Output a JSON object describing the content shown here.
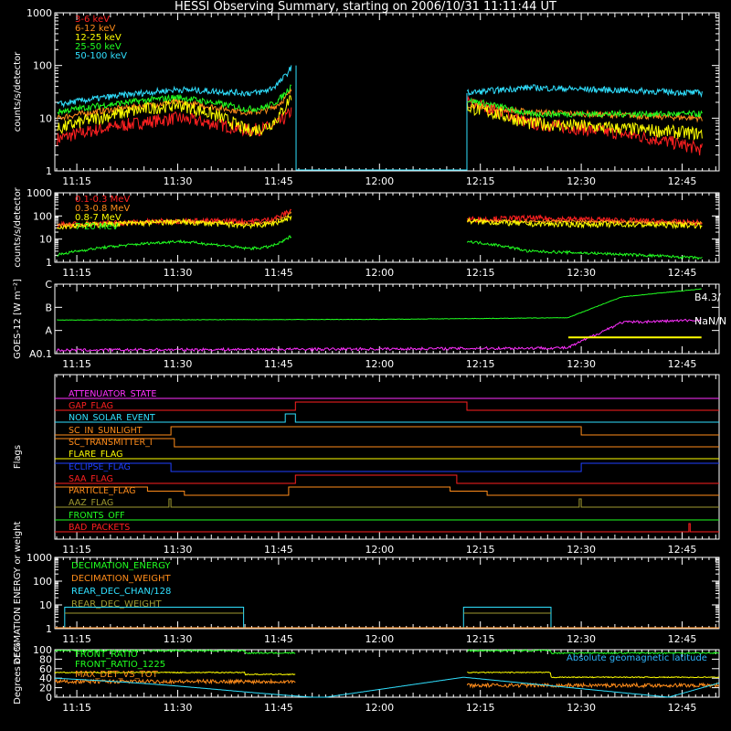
{
  "title": "HESSI Observing Summary, starting on 2006/10/31 11:11:44 UT",
  "time_ticks": [
    "11:15",
    "11:30",
    "11:45",
    "12:00",
    "12:15",
    "12:30",
    "12:45"
  ],
  "colors": {
    "red": "#ff2020",
    "orange": "#ff8c1a",
    "yellow": "#ffff00",
    "green": "#20ff20",
    "cyan": "#30e0ff",
    "magenta": "#ff30ff",
    "blue": "#2040ff",
    "olive": "#a09a30",
    "axis": "#ffffff"
  },
  "chart_data": [
    {
      "id": "lowE",
      "type": "line",
      "ylabel": "counts/s/detector",
      "ylog": true,
      "ylim": [
        1,
        1000
      ],
      "yticks": [
        "1",
        "10",
        "100",
        "1000"
      ],
      "x": [
        "11:12",
        "11:30",
        "11:40",
        "11:47",
        "11:48",
        "12:13",
        "12:22",
        "12:48"
      ],
      "series": [
        {
          "name": "3-6 keV",
          "color": "#ff2020",
          "values": [
            4,
            10,
            6,
            14,
            null,
            20,
            8,
            2.5
          ]
        },
        {
          "name": "6-12 keV",
          "color": "#ff8c1a",
          "values": [
            10,
            20,
            13,
            35,
            null,
            18,
            13,
            10
          ]
        },
        {
          "name": "12-25 keV",
          "color": "#ffff00",
          "values": [
            6,
            18,
            6,
            30,
            null,
            16,
            8,
            5
          ]
        },
        {
          "name": "25-50 keV",
          "color": "#20ff20",
          "values": [
            13,
            25,
            15,
            45,
            null,
            22,
            12,
            12
          ]
        },
        {
          "name": "50-100 keV",
          "color": "#30e0ff",
          "values": [
            18,
            35,
            30,
            100,
            null,
            30,
            38,
            30
          ]
        }
      ]
    },
    {
      "id": "highE",
      "type": "line",
      "ylabel": "counts/s/detector",
      "ylog": true,
      "ylim": [
        1,
        1000
      ],
      "yticks": [
        "1",
        "10",
        "100",
        "1000"
      ],
      "x": [
        "11:12",
        "11:30",
        "11:40",
        "11:47",
        "11:48",
        "12:13",
        "12:22",
        "12:48"
      ],
      "series": [
        {
          "name": "0.1-0.3 MeV",
          "color": "#ff2020",
          "values": [
            40,
            60,
            60,
            200,
            null,
            70,
            80,
            50
          ]
        },
        {
          "name": "0.3-0.8 MeV",
          "color": "#ff8c1a",
          "values": [
            40,
            60,
            45,
            150,
            null,
            60,
            60,
            50
          ]
        },
        {
          "name": "0.8-7 MeV",
          "color": "#ffff00",
          "values": [
            35,
            55,
            40,
            100,
            null,
            60,
            45,
            40
          ]
        },
        {
          "name": "7-20 MeV",
          "color": "#20ff20",
          "values": [
            2,
            8,
            4,
            15,
            null,
            8,
            3,
            1.5
          ]
        }
      ]
    },
    {
      "id": "goes",
      "type": "line",
      "ylabel": "GOES-12 [W m⁻²]",
      "ylim": [
        0,
        3
      ],
      "yticks": [
        "A0.1",
        "A",
        "B",
        "C"
      ],
      "x": [
        "11:12",
        "12:00",
        "12:28",
        "12:36",
        "12:48"
      ],
      "series": [
        {
          "name": "B4.3/",
          "color": "#20ff20",
          "values": [
            1.45,
            1.48,
            1.55,
            2.45,
            2.8
          ]
        },
        {
          "name": "NaN/N",
          "color": "#ff30ff",
          "values": [
            0.15,
            0.2,
            0.25,
            1.35,
            1.45
          ]
        },
        {
          "name": "",
          "color": "#ffff00",
          "values": [
            null,
            null,
            0.7,
            0.7,
            0.7
          ]
        }
      ],
      "labels": [
        "B4.3/",
        "NaN/N"
      ]
    },
    {
      "id": "flags",
      "type": "line",
      "ylabel": "Flags",
      "flags": [
        {
          "name": "ATTENUATOR_STATE",
          "color": "#ff30ff"
        },
        {
          "name": "GAP_FLAG",
          "color": "#ff2020"
        },
        {
          "name": "NON_SOLAR_EVENT",
          "color": "#30e0ff"
        },
        {
          "name": "SC_IN_SUNLIGHT",
          "color": "#ff8c1a"
        },
        {
          "name": "SC_TRANSMITTER_I",
          "color": "#ff8c1a"
        },
        {
          "name": "FLARE_FLAG",
          "color": "#ffff00"
        },
        {
          "name": "ECLIPSE_FLAG",
          "color": "#2040ff"
        },
        {
          "name": "SAA_FLAG",
          "color": "#ff2020"
        },
        {
          "name": "PARTICLE_FLAG",
          "color": "#ff8c1a"
        },
        {
          "name": "AAZ_FLAG",
          "color": "#a09a30"
        },
        {
          "name": "FRONTS_OFF",
          "color": "#20ff20"
        },
        {
          "name": "BAD_PACKETS",
          "color": "#ff2020"
        }
      ]
    },
    {
      "id": "decim",
      "type": "line",
      "ylabel": "DECIMATION ENERGY or weight",
      "ylog": true,
      "ylim": [
        1,
        1000
      ],
      "yticks": [
        "1",
        "10",
        "100",
        "1000"
      ],
      "series": [
        {
          "name": "DECIMATION_ENERGY",
          "color": "#20ff20"
        },
        {
          "name": "DECIMATION_WEIGHT",
          "color": "#ff8c1a"
        },
        {
          "name": "REAR_DEC_CHAN/128",
          "color": "#30e0ff"
        },
        {
          "name": "REAR_DEC_WEIGHT",
          "color": "#a09a30"
        }
      ]
    },
    {
      "id": "ratio",
      "type": "line",
      "ylabel": "Degrees or %",
      "ylim": [
        0,
        100
      ],
      "yticks": [
        "0",
        "20",
        "40",
        "60",
        "80",
        "100"
      ],
      "series": [
        {
          "name": "FRONT_RATIO",
          "color": "#20ff20"
        },
        {
          "name": "FRONT_RATIO_1225",
          "color": "#20ff20"
        },
        {
          "name": "MAX_DET_VS_TOT",
          "color": "#ff8c1a"
        }
      ],
      "note": "Absolute geomagnetic latitude"
    }
  ]
}
